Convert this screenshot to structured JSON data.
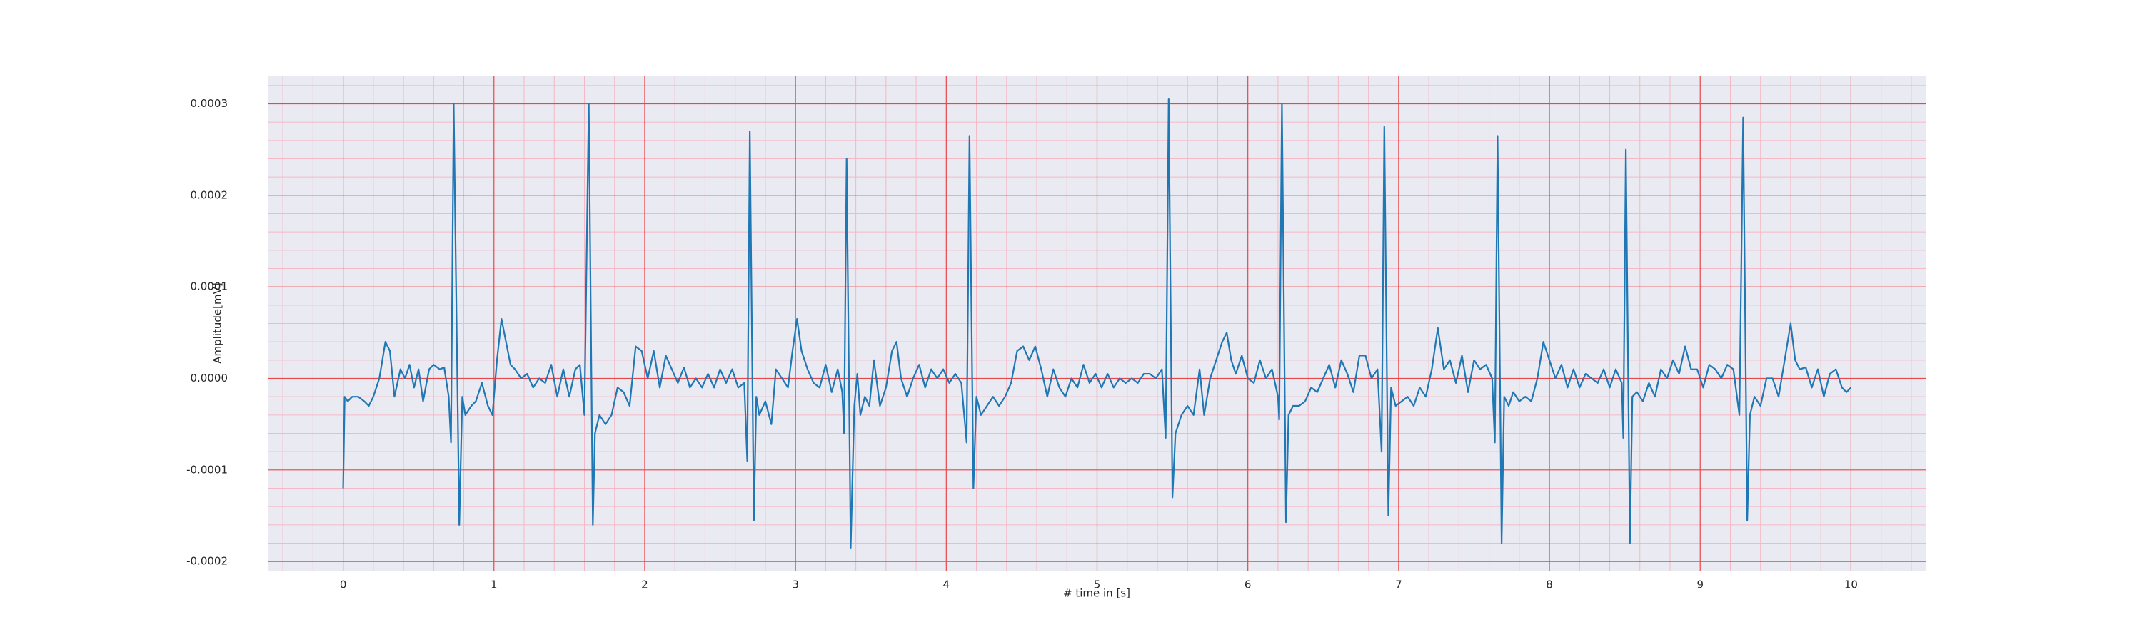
{
  "chart_data": {
    "type": "line",
    "xlabel": "# time in [s]",
    "ylabel": "Amplitude[mV]",
    "color": "#1f77b4",
    "grid": true,
    "minor_grid": true,
    "xlim": [
      -0.5,
      10.5
    ],
    "xticks": [
      0,
      1,
      2,
      3,
      4,
      5,
      6,
      7,
      8,
      9,
      10
    ],
    "ylim": [
      -0.00021,
      0.00033
    ],
    "yticks": [
      {
        "value": -0.0002,
        "label": "-0.0002"
      },
      {
        "value": -0.0001,
        "label": "-0.0001"
      },
      {
        "value": 0,
        "label": "0.0000"
      },
      {
        "value": 0.0001,
        "label": "0.0001"
      },
      {
        "value": 0.0002,
        "label": "0.0002"
      },
      {
        "value": 0.0003,
        "label": "0.0003"
      }
    ],
    "x": [
      0,
      0.01,
      0.03,
      0.06,
      0.1,
      0.14,
      0.17,
      0.2,
      0.24,
      0.28,
      0.31,
      0.34,
      0.38,
      0.41,
      0.44,
      0.47,
      0.5,
      0.53,
      0.57,
      0.6,
      0.64,
      0.67,
      0.7,
      0.715,
      0.733,
      0.77,
      0.79,
      0.81,
      0.85,
      0.88,
      0.92,
      0.96,
      0.99,
      1.02,
      1.05,
      1.08,
      1.11,
      1.14,
      1.18,
      1.22,
      1.26,
      1.3,
      1.34,
      1.38,
      1.42,
      1.46,
      1.5,
      1.54,
      1.57,
      1.6,
      1.629,
      1.656,
      1.67,
      1.7,
      1.74,
      1.78,
      1.82,
      1.86,
      1.9,
      1.94,
      1.98,
      2.02,
      2.06,
      2.1,
      2.14,
      2.18,
      2.22,
      2.26,
      2.3,
      2.34,
      2.38,
      2.42,
      2.46,
      2.5,
      2.54,
      2.58,
      2.62,
      2.66,
      2.68,
      2.697,
      2.724,
      2.74,
      2.76,
      2.8,
      2.84,
      2.87,
      2.91,
      2.95,
      2.98,
      3.01,
      3.04,
      3.08,
      3.12,
      3.16,
      3.2,
      3.24,
      3.28,
      3.31,
      3.322,
      3.339,
      3.366,
      3.39,
      3.41,
      3.43,
      3.46,
      3.49,
      3.52,
      3.56,
      3.6,
      3.64,
      3.67,
      3.7,
      3.74,
      3.78,
      3.82,
      3.86,
      3.9,
      3.94,
      3.98,
      4.02,
      4.06,
      4.1,
      4.135,
      4.154,
      4.18,
      4.2,
      4.23,
      4.27,
      4.31,
      4.35,
      4.39,
      4.43,
      4.47,
      4.51,
      4.55,
      4.59,
      4.63,
      4.67,
      4.71,
      4.75,
      4.79,
      4.83,
      4.87,
      4.91,
      4.95,
      4.99,
      5.03,
      5.07,
      5.11,
      5.15,
      5.19,
      5.23,
      5.27,
      5.31,
      5.35,
      5.39,
      5.43,
      5.455,
      5.475,
      5.5,
      5.52,
      5.56,
      5.6,
      5.64,
      5.68,
      5.71,
      5.75,
      5.79,
      5.83,
      5.86,
      5.89,
      5.92,
      5.96,
      6,
      6.04,
      6.08,
      6.12,
      6.16,
      6.2,
      6.208,
      6.226,
      6.253,
      6.27,
      6.3,
      6.34,
      6.38,
      6.42,
      6.46,
      6.5,
      6.54,
      6.58,
      6.62,
      6.66,
      6.7,
      6.74,
      6.78,
      6.82,
      6.86,
      6.887,
      6.905,
      6.932,
      6.95,
      6.98,
      7.02,
      7.06,
      7.1,
      7.14,
      7.18,
      7.22,
      7.26,
      7.3,
      7.34,
      7.38,
      7.42,
      7.46,
      7.5,
      7.54,
      7.58,
      7.62,
      7.638,
      7.656,
      7.683,
      7.7,
      7.73,
      7.76,
      7.8,
      7.84,
      7.88,
      7.92,
      7.96,
      8,
      8.04,
      8.08,
      8.12,
      8.16,
      8.2,
      8.24,
      8.28,
      8.32,
      8.36,
      8.4,
      8.44,
      8.48,
      8.49,
      8.507,
      8.534,
      8.55,
      8.58,
      8.62,
      8.66,
      8.7,
      8.74,
      8.78,
      8.82,
      8.86,
      8.9,
      8.94,
      8.98,
      9.02,
      9.06,
      9.1,
      9.14,
      9.18,
      9.22,
      9.26,
      9.285,
      9.312,
      9.33,
      9.36,
      9.4,
      9.44,
      9.48,
      9.52,
      9.56,
      9.6,
      9.63,
      9.66,
      9.7,
      9.74,
      9.78,
      9.82,
      9.86,
      9.9,
      9.94,
      9.97,
      10
    ],
    "values": [
      -0.00012,
      -2e-05,
      -2.5e-05,
      -2e-05,
      -2e-05,
      -2.5e-05,
      -3e-05,
      -2e-05,
      0,
      4e-05,
      3e-05,
      -2e-05,
      1e-05,
      0,
      1.5e-05,
      -1e-05,
      1e-05,
      -2.5e-05,
      1e-05,
      1.5e-05,
      1e-05,
      1.2e-05,
      -2e-05,
      -7e-05,
      0.0003,
      -0.00016,
      -2e-05,
      -4e-05,
      -3e-05,
      -2.5e-05,
      -5e-06,
      -3e-05,
      -4e-05,
      2e-05,
      6.5e-05,
      4e-05,
      1.5e-05,
      1e-05,
      0,
      5e-06,
      -1e-05,
      0,
      -5e-06,
      1.5e-05,
      -2e-05,
      1e-05,
      -2e-05,
      1e-05,
      1.5e-05,
      -4e-05,
      0.0003,
      -0.00016,
      -6e-05,
      -4e-05,
      -5e-05,
      -4e-05,
      -1e-05,
      -1.5e-05,
      -3e-05,
      3.5e-05,
      3e-05,
      0,
      3e-05,
      -1e-05,
      2.5e-05,
      1e-05,
      -5e-06,
      1.2e-05,
      -1e-05,
      0,
      -1e-05,
      5e-06,
      -1e-05,
      1e-05,
      -5e-06,
      1e-05,
      -1e-05,
      -5e-06,
      -9e-05,
      0.00027,
      -0.000155,
      -2e-05,
      -4e-05,
      -2.5e-05,
      -5e-05,
      1e-05,
      0,
      -1e-05,
      3e-05,
      6.5e-05,
      3e-05,
      1e-05,
      -5e-06,
      -1e-05,
      1.5e-05,
      -1.5e-05,
      1e-05,
      -1.5e-05,
      -6e-05,
      0.00024,
      -0.000185,
      -3e-05,
      5e-06,
      -4e-05,
      -2e-05,
      -3e-05,
      2e-05,
      -3e-05,
      -1e-05,
      3e-05,
      4e-05,
      0,
      -2e-05,
      0,
      1.5e-05,
      -1e-05,
      1e-05,
      0,
      1e-05,
      -5e-06,
      5e-06,
      -5e-06,
      -7e-05,
      0.000265,
      -0.00012,
      -2e-05,
      -4e-05,
      -3e-05,
      -2e-05,
      -3e-05,
      -2e-05,
      -5e-06,
      3e-05,
      3.5e-05,
      2e-05,
      3.5e-05,
      1e-05,
      -2e-05,
      1e-05,
      -1e-05,
      -2e-05,
      0,
      -1e-05,
      1.5e-05,
      -5e-06,
      5e-06,
      -1e-05,
      5e-06,
      -1e-05,
      0,
      -5e-06,
      0,
      -5e-06,
      5e-06,
      5e-06,
      0,
      1e-05,
      -6.5e-05,
      0.000305,
      -0.00013,
      -6e-05,
      -4e-05,
      -3e-05,
      -4e-05,
      1e-05,
      -4e-05,
      0,
      2e-05,
      4e-05,
      5e-05,
      2e-05,
      5e-06,
      2.5e-05,
      0,
      -5e-06,
      2e-05,
      0,
      1e-05,
      -2e-05,
      -4.5e-05,
      0.0003,
      -0.000157,
      -4e-05,
      -3e-05,
      -3e-05,
      -2.5e-05,
      -1e-05,
      -1.5e-05,
      0,
      1.5e-05,
      -1e-05,
      2e-05,
      5e-06,
      -1.5e-05,
      2.5e-05,
      2.5e-05,
      0,
      1e-05,
      -8e-05,
      0.000275,
      -0.00015,
      -1e-05,
      -3e-05,
      -2.5e-05,
      -2e-05,
      -3e-05,
      -1e-05,
      -2e-05,
      1e-05,
      5.5e-05,
      1e-05,
      2e-05,
      -5e-06,
      2.5e-05,
      -1.5e-05,
      2e-05,
      1e-05,
      1.5e-05,
      0,
      -7e-05,
      0.000265,
      -0.00018,
      -2e-05,
      -3e-05,
      -1.5e-05,
      -2.5e-05,
      -2e-05,
      -2.5e-05,
      0,
      4e-05,
      2e-05,
      0,
      1.5e-05,
      -1e-05,
      1e-05,
      -1e-05,
      5e-06,
      0,
      -5e-06,
      1e-05,
      -1e-05,
      1e-05,
      -5e-06,
      -6.5e-05,
      0.00025,
      -0.00018,
      -2e-05,
      -1.5e-05,
      -2.5e-05,
      -5e-06,
      -2e-05,
      1e-05,
      0,
      2e-05,
      5e-06,
      3.5e-05,
      1e-05,
      1e-05,
      -1e-05,
      1.5e-05,
      1e-05,
      0,
      1.5e-05,
      1e-05,
      -4e-05,
      0.000285,
      -0.000155,
      -4e-05,
      -2e-05,
      -3e-05,
      0,
      0,
      -2e-05,
      2e-05,
      6e-05,
      2e-05,
      1e-05,
      1.2e-05,
      -1e-05,
      1e-05,
      -2e-05,
      5e-06,
      1e-05,
      -1e-05,
      -1.5e-05,
      -1e-05
    ]
  }
}
